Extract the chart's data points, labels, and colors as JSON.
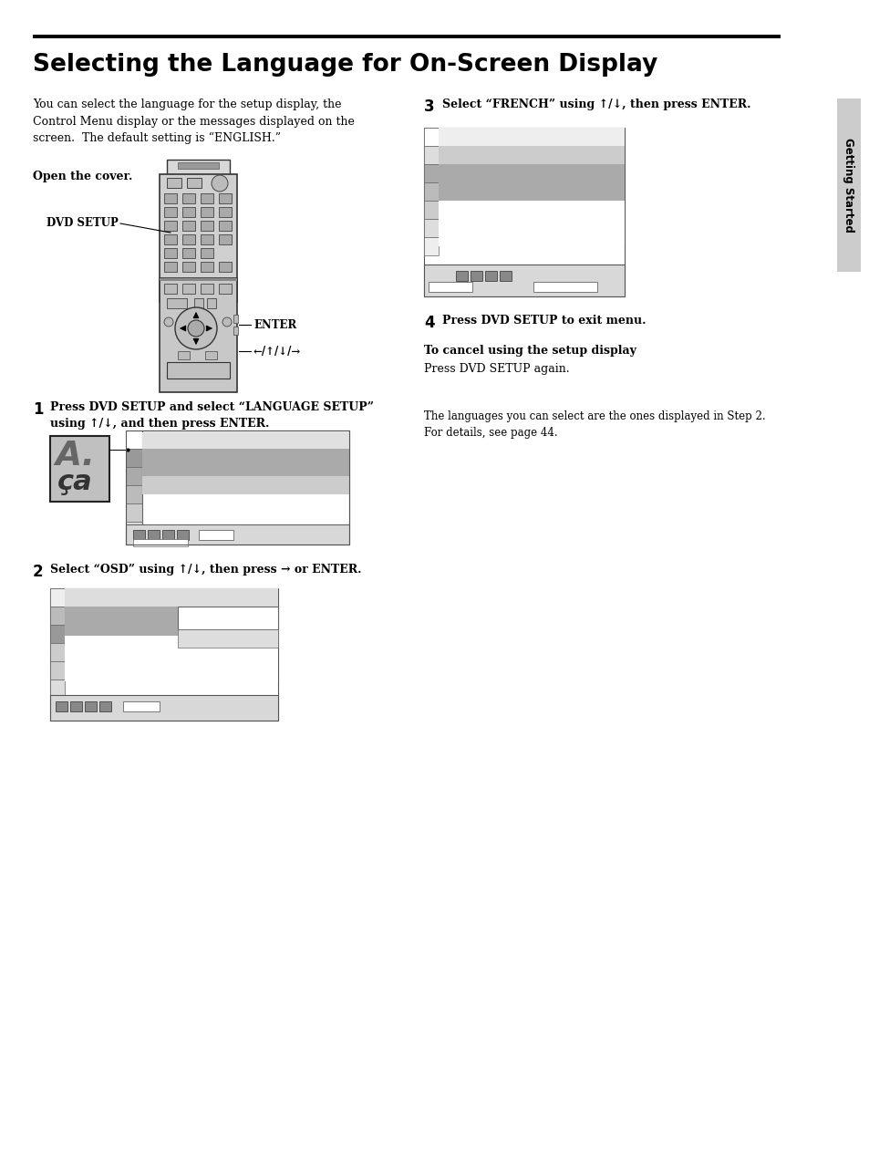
{
  "title": "Selecting the Language for On-Screen Display",
  "bg_color": "#ffffff",
  "intro_text": "You can select the language for the setup display, the\nControl Menu display or the messages displayed on the\nscreen.  The default setting is “ENGLISH.”",
  "open_cover_label": "Open the cover.",
  "dvd_setup_label": "DVD SETUP",
  "enter_label": "ENTER",
  "arrow_label": "←/↑/↓/→",
  "step1_text": "Press DVD SETUP and select “LANGUAGE SETUP”\nusing ↑/↓, and then press ENTER.",
  "step2_text": "Select “OSD” using ↑/↓, then press → or ENTER.",
  "step3_text": "Select “FRENCH” using ↑/↓, then press ENTER.",
  "step4_text": "Press DVD SETUP to exit menu.",
  "cancel_title": "To cancel using the setup display",
  "cancel_text": "Press DVD SETUP again.",
  "note_text": "The languages you can select are the ones displayed in Step 2.\nFor details, see page 44.",
  "sidebar_text": "Getting Started"
}
